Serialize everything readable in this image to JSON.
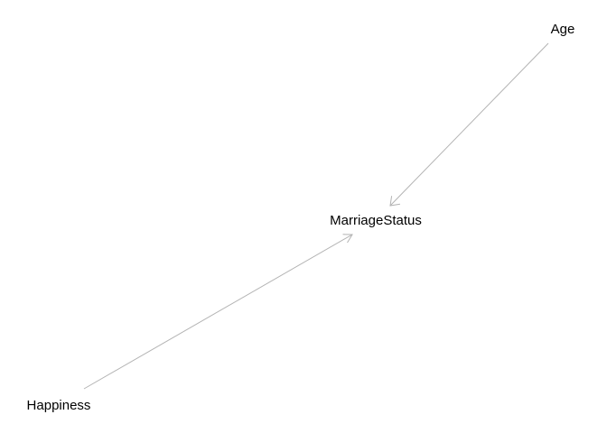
{
  "diagram": {
    "type": "directed-acyclic-graph",
    "nodes": [
      {
        "id": "age",
        "label": "Age"
      },
      {
        "id": "marriage_status",
        "label": "MarriageStatus"
      },
      {
        "id": "happiness",
        "label": "Happiness"
      }
    ],
    "edges": [
      {
        "from": "age",
        "to": "marriage_status"
      },
      {
        "from": "happiness",
        "to": "marriage_status"
      }
    ],
    "colors": {
      "background": "#ffffff",
      "edge": "#b3b3b3",
      "label": "#000000"
    }
  }
}
